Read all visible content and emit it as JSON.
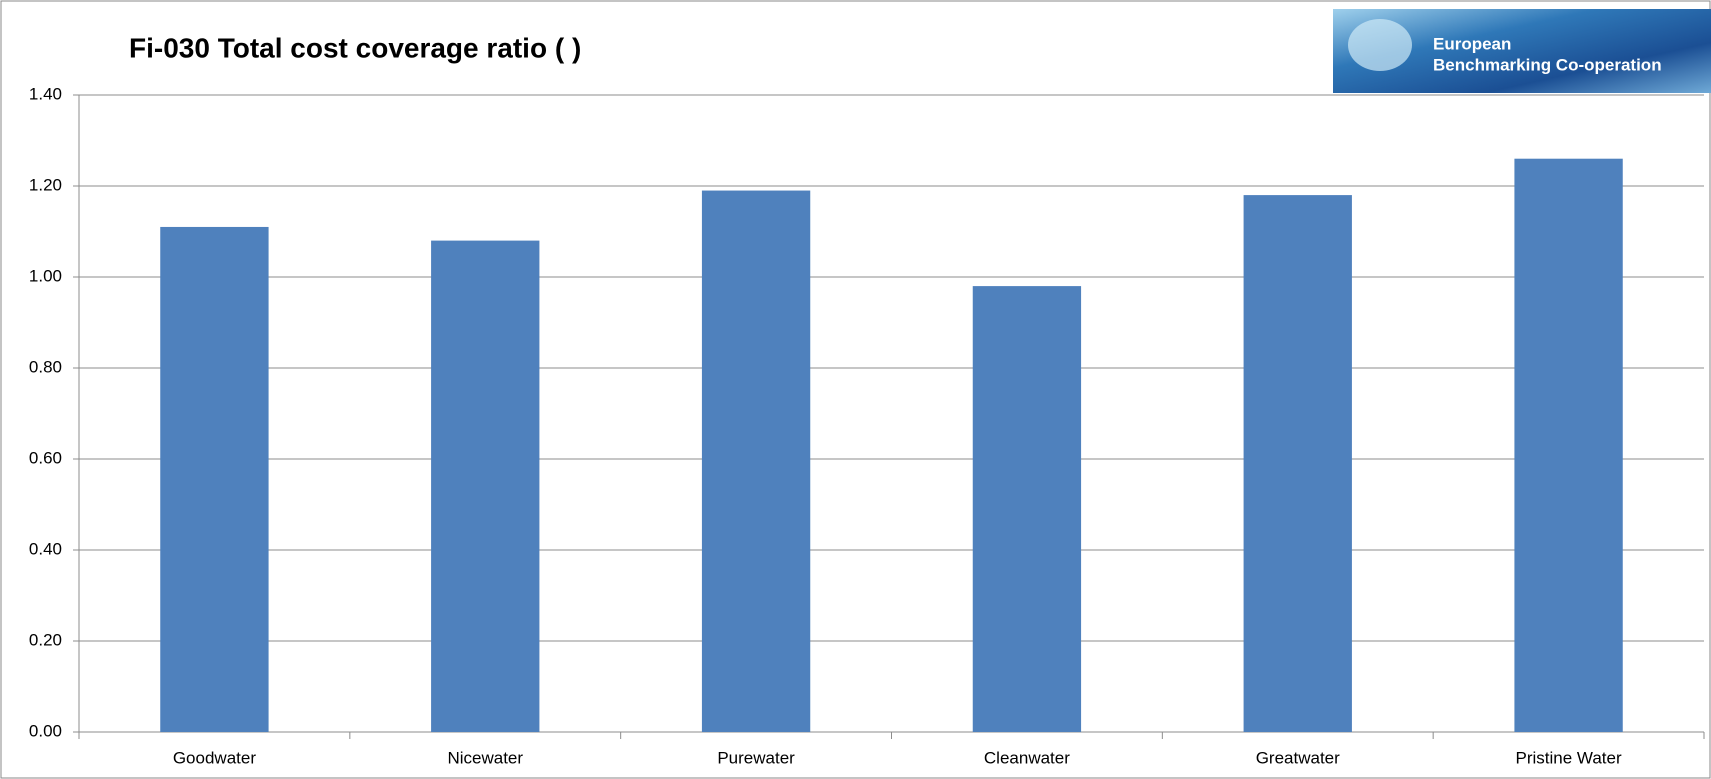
{
  "chart_data": {
    "type": "bar",
    "title": "Fi-030 Total cost coverage ratio ( )",
    "categories": [
      "Goodwater",
      "Nicewater",
      "Purewater",
      "Cleanwater",
      "Greatwater",
      "Pristine Water"
    ],
    "values": [
      1.11,
      1.08,
      1.19,
      0.98,
      1.18,
      1.26
    ],
    "color": "#4f81bd",
    "ylim": [
      0,
      1.4
    ],
    "yticks": [
      {
        "value": 0,
        "label": "0.00"
      },
      {
        "value": 0.2,
        "label": "0.20"
      },
      {
        "value": 0.4,
        "label": "0.40"
      },
      {
        "value": 0.6,
        "label": "0.60"
      },
      {
        "value": 0.8,
        "label": "0.80"
      },
      {
        "value": 1,
        "label": "1.00"
      },
      {
        "value": 1.2,
        "label": "1.20"
      },
      {
        "value": 1.4,
        "label": "1.40"
      }
    ],
    "grid": true
  },
  "logo": {
    "line1": "European",
    "line2": "Benchmarking Co-operation"
  }
}
